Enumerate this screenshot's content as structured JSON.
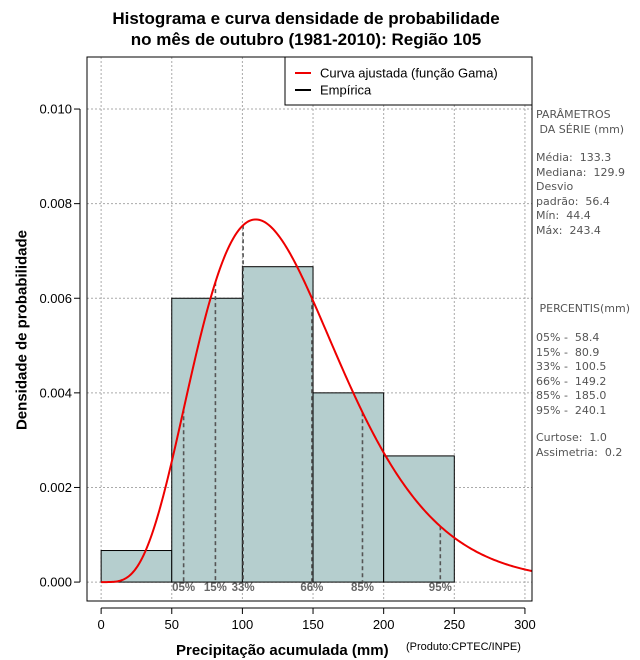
{
  "chart_data": {
    "type": "bar",
    "title_line1": "Histograma e curva densidade de probabilidade",
    "title_line2": "no mês de outubro (1981-2010): Região 105",
    "xlabel": "Precipitação acumulada (mm)",
    "ylabel": "Densidade de probabilidade",
    "credit": "(Produto:CPTEC/INPE)",
    "xlim": [
      -10,
      305
    ],
    "ylim": [
      -0.0004,
      0.0111
    ],
    "x_ticks": [
      0,
      50,
      100,
      150,
      200,
      250,
      300
    ],
    "x_tick_labels": [
      "0",
      "50",
      "100",
      "150",
      "200",
      "250",
      "300"
    ],
    "y_ticks": [
      0.0,
      0.002,
      0.004,
      0.006,
      0.008,
      0.01
    ],
    "y_tick_labels": [
      "0.000",
      "0.002",
      "0.004",
      "0.006",
      "0.008",
      "0.010"
    ],
    "grid": true,
    "histogram": {
      "name": "Empírica",
      "color": "#b5cece",
      "bins": [
        {
          "x0": 0,
          "x1": 50,
          "density": 0.000667
        },
        {
          "x0": 50,
          "x1": 100,
          "density": 0.006
        },
        {
          "x0": 100,
          "x1": 150,
          "density": 0.006667
        },
        {
          "x0": 150,
          "x1": 200,
          "density": 0.004
        },
        {
          "x0": 200,
          "x1": 250,
          "density": 0.002667
        }
      ]
    },
    "curve": {
      "name": "Curva ajustada (função Gama)",
      "color": "#ee0000",
      "distribution": "gamma",
      "mean": 133.3,
      "sd": 56.4
    },
    "legend": {
      "position": "top-right",
      "entries": [
        {
          "label": "Curva ajustada (função Gama)",
          "color": "#ee0000"
        },
        {
          "label": "Empírica",
          "color": "#000000"
        }
      ]
    },
    "percentile_markers": [
      {
        "label": "05%",
        "value": 58.4
      },
      {
        "label": "15%",
        "value": 80.9
      },
      {
        "label": "33%",
        "value": 100.5
      },
      {
        "label": "66%",
        "value": 149.2
      },
      {
        "label": "85%",
        "value": 185.0
      },
      {
        "label": "95%",
        "value": 240.1
      }
    ]
  },
  "stats": {
    "heading": "PARÂMETROS\n DA SÉRIE (mm)",
    "lines": "Média:  133.3\nMediana:  129.9\nDesvio\npadrão:  56.4\nMín:  44.4\nMáx:  243.4",
    "percentiles_heading": " PERCENTIS(mm)",
    "percentiles_lines": "05% -  58.4\n15% -  80.9\n33% -  100.5\n66% -  149.2\n85% -  185.0\n95% -  240.1",
    "extra_lines": "Curtose:  1.0\nAssimetria:  0.2"
  }
}
